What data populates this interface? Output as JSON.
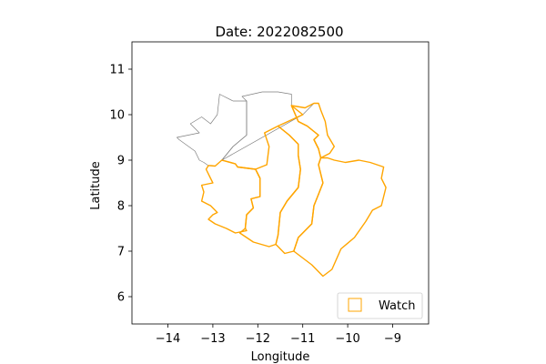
{
  "chart_data": {
    "type": "map",
    "title": "Date: 2022082500",
    "xlabel": "Longitude",
    "ylabel": "Latitude",
    "xlim": [
      -14.8,
      -8.2
    ],
    "ylim": [
      5.4,
      11.6
    ],
    "xticks": [
      -14,
      -13,
      -12,
      -11,
      -10,
      -9
    ],
    "xtick_labels": [
      "−14",
      "−13",
      "−12",
      "−11",
      "−10",
      "−9"
    ],
    "yticks": [
      6,
      7,
      8,
      9,
      10,
      11
    ],
    "ytick_labels": [
      "6",
      "7",
      "8",
      "9",
      "10",
      "11"
    ],
    "legend": {
      "position": "lower right",
      "entries": [
        {
          "label": "Watch",
          "color": "#ffa500",
          "marker": "square-outline"
        }
      ]
    },
    "colors": {
      "watch": "#ffa500",
      "context": "#7f7f7f"
    },
    "context_regions": [
      {
        "coords": [
          [
            -12.8,
            9.0
          ],
          [
            -12.55,
            9.3
          ],
          [
            -12.25,
            9.55
          ],
          [
            -12.25,
            10.3
          ],
          [
            -12.35,
            10.4
          ],
          [
            -11.9,
            10.5
          ],
          [
            -11.55,
            10.5
          ],
          [
            -11.25,
            10.45
          ],
          [
            -11.25,
            10.2
          ],
          [
            -10.95,
            10.15
          ],
          [
            -10.75,
            10.25
          ],
          [
            -11.0,
            10.0
          ]
        ]
      },
      {
        "coords": [
          [
            -12.8,
            9.0
          ],
          [
            -12.55,
            9.3
          ],
          [
            -12.25,
            9.55
          ],
          [
            -12.25,
            10.3
          ],
          [
            -12.55,
            10.3
          ],
          [
            -12.85,
            10.45
          ],
          [
            -12.9,
            10.0
          ],
          [
            -13.05,
            9.8
          ],
          [
            -13.25,
            9.95
          ],
          [
            -13.5,
            9.8
          ],
          [
            -13.3,
            9.6
          ],
          [
            -13.8,
            9.5
          ],
          [
            -13.75,
            9.45
          ],
          [
            -13.4,
            9.2
          ],
          [
            -13.3,
            9.0
          ],
          [
            -13.2,
            8.95
          ],
          [
            -13.1,
            8.88
          ],
          [
            -12.95,
            8.87
          ]
        ]
      }
    ],
    "watch_regions": [
      {
        "coords": [
          [
            -13.05,
            8.88
          ],
          [
            -12.95,
            8.87
          ],
          [
            -12.8,
            9.0
          ],
          [
            -12.5,
            8.92
          ],
          [
            -12.45,
            8.85
          ],
          [
            -12.05,
            8.8
          ],
          [
            -11.95,
            8.6
          ],
          [
            -11.95,
            8.2
          ],
          [
            -12.15,
            8.15
          ],
          [
            -12.1,
            7.95
          ],
          [
            -12.25,
            7.8
          ],
          [
            -12.28,
            7.5
          ],
          [
            -12.25,
            7.45
          ],
          [
            -12.5,
            7.4
          ],
          [
            -12.7,
            7.5
          ],
          [
            -12.95,
            7.6
          ],
          [
            -13.1,
            7.7
          ],
          [
            -13.0,
            7.8
          ],
          [
            -12.9,
            7.85
          ],
          [
            -13.05,
            8.0
          ],
          [
            -13.25,
            8.1
          ],
          [
            -13.2,
            8.3
          ],
          [
            -13.25,
            8.45
          ],
          [
            -13.0,
            8.5
          ],
          [
            -13.05,
            8.6
          ],
          [
            -13.15,
            8.8
          ],
          [
            -13.1,
            8.88
          ]
        ]
      },
      {
        "coords": [
          [
            -12.8,
            9.0
          ],
          [
            -12.5,
            8.92
          ],
          [
            -12.45,
            8.85
          ],
          [
            -12.05,
            8.8
          ],
          [
            -11.8,
            8.9
          ],
          [
            -11.75,
            9.3
          ],
          [
            -11.85,
            9.6
          ],
          [
            -11.55,
            9.75
          ],
          [
            -11.3,
            9.55
          ],
          [
            -11.1,
            9.35
          ],
          [
            -11.1,
            9.1
          ],
          [
            -11.05,
            8.8
          ],
          [
            -11.1,
            8.4
          ],
          [
            -11.35,
            8.1
          ],
          [
            -11.5,
            7.85
          ],
          [
            -11.55,
            7.35
          ],
          [
            -11.6,
            7.15
          ],
          [
            -11.75,
            7.1
          ],
          [
            -12.1,
            7.2
          ],
          [
            -12.4,
            7.4
          ],
          [
            -12.28,
            7.5
          ],
          [
            -12.25,
            7.8
          ],
          [
            -12.1,
            7.95
          ],
          [
            -12.15,
            8.15
          ],
          [
            -11.95,
            8.2
          ],
          [
            -11.95,
            8.6
          ],
          [
            -12.05,
            8.8
          ],
          [
            -12.45,
            8.85
          ],
          [
            -12.5,
            8.92
          ],
          [
            -12.8,
            9.0
          ]
        ]
      },
      {
        "coords": [
          [
            -11.55,
            9.75
          ],
          [
            -11.3,
            9.55
          ],
          [
            -11.1,
            9.35
          ],
          [
            -11.1,
            9.1
          ],
          [
            -11.05,
            8.8
          ],
          [
            -11.1,
            8.4
          ],
          [
            -11.35,
            8.1
          ],
          [
            -11.5,
            7.85
          ],
          [
            -11.55,
            7.35
          ],
          [
            -11.6,
            7.15
          ],
          [
            -11.4,
            6.95
          ],
          [
            -11.2,
            7.0
          ],
          [
            -11.1,
            7.3
          ],
          [
            -10.8,
            7.6
          ],
          [
            -10.75,
            8.0
          ],
          [
            -10.65,
            8.25
          ],
          [
            -10.55,
            8.5
          ],
          [
            -10.65,
            8.9
          ],
          [
            -10.6,
            9.05
          ],
          [
            -10.65,
            9.25
          ],
          [
            -10.75,
            9.45
          ],
          [
            -10.65,
            9.55
          ],
          [
            -10.9,
            9.75
          ],
          [
            -11.1,
            9.85
          ],
          [
            -11.25,
            10.2
          ],
          [
            -11.0,
            10.0
          ],
          [
            -11.55,
            9.75
          ]
        ]
      },
      {
        "coords": [
          [
            -10.75,
            10.25
          ],
          [
            -10.95,
            10.15
          ],
          [
            -11.25,
            10.2
          ],
          [
            -11.1,
            9.85
          ],
          [
            -10.9,
            9.75
          ],
          [
            -10.65,
            9.55
          ],
          [
            -10.75,
            9.45
          ],
          [
            -10.65,
            9.25
          ],
          [
            -10.6,
            9.05
          ],
          [
            -10.4,
            9.15
          ],
          [
            -10.3,
            9.3
          ],
          [
            -10.45,
            9.55
          ],
          [
            -10.5,
            9.85
          ],
          [
            -10.6,
            10.1
          ],
          [
            -10.65,
            10.25
          ]
        ]
      },
      {
        "coords": [
          [
            -10.6,
            9.05
          ],
          [
            -10.65,
            8.9
          ],
          [
            -10.55,
            8.5
          ],
          [
            -10.65,
            8.25
          ],
          [
            -10.75,
            8.0
          ],
          [
            -10.8,
            7.6
          ],
          [
            -11.1,
            7.3
          ],
          [
            -11.2,
            7.0
          ],
          [
            -10.8,
            6.7
          ],
          [
            -10.55,
            6.45
          ],
          [
            -10.35,
            6.6
          ],
          [
            -10.15,
            7.05
          ],
          [
            -9.85,
            7.3
          ],
          [
            -9.6,
            7.65
          ],
          [
            -9.45,
            7.9
          ],
          [
            -9.25,
            8.0
          ],
          [
            -9.15,
            8.4
          ],
          [
            -9.25,
            8.6
          ],
          [
            -9.2,
            8.85
          ],
          [
            -9.5,
            8.95
          ],
          [
            -9.75,
            9.0
          ],
          [
            -10.05,
            8.95
          ],
          [
            -10.3,
            9.0
          ],
          [
            -10.45,
            9.05
          ]
        ]
      }
    ]
  }
}
